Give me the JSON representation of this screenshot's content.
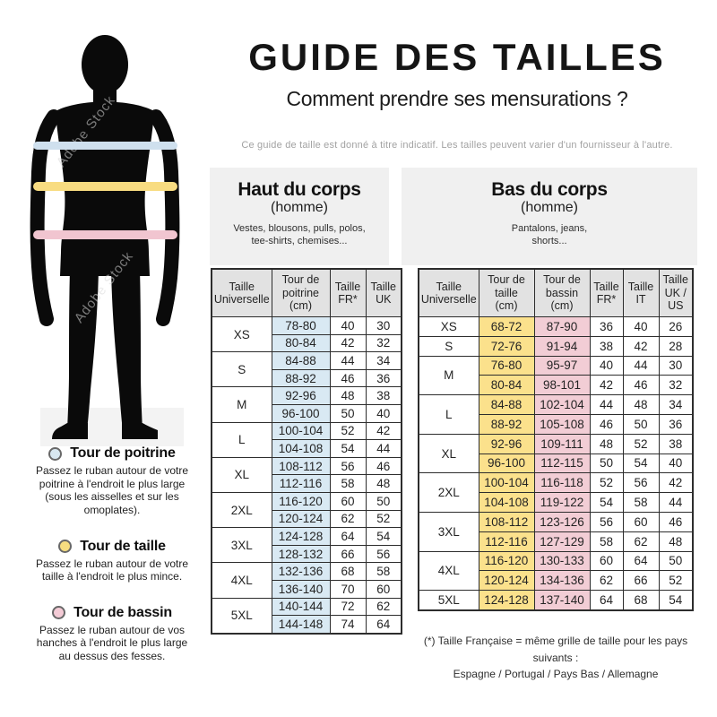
{
  "header": {
    "title": "GUIDE DES TAILLES",
    "subtitle": "Comment prendre ses mensurations ?",
    "note": "Ce guide de taille est donné à titre indicatif. Les tailles peuvent varier d'un fournisseur à l'autre."
  },
  "watermark": "Adobe Stock",
  "figure": {
    "bands": [
      {
        "name": "chest",
        "color": "#cfe0ee"
      },
      {
        "name": "waist",
        "color": "#f8dc81"
      },
      {
        "name": "hips",
        "color": "#f1c5d0"
      }
    ]
  },
  "legend": {
    "items": [
      {
        "label": "Tour de poitrine",
        "color": "#d8e7f0",
        "description": "Passez le ruban autour de votre\npoitrine à l'endroit le plus large\n(sous les aisselles et sur les\nomoplates)."
      },
      {
        "label": "Tour de taille",
        "color": "#f6dd80",
        "description": "Passez le ruban autour de votre\ntaille à l'endroit le plus mince."
      },
      {
        "label": "Tour de bassin",
        "color": "#f4cbd6",
        "description": "Passez le ruban autour de vos\nhanches à l'endroit le plus large\nau dessus des fesses."
      }
    ]
  },
  "upper_table": {
    "title": "Haut du corps",
    "subtitle": "(homme)",
    "items": "Vestes, blousons, pulls, polos,\ntee-shirts, chemises...",
    "columns": [
      "Taille\nUniverselle",
      "Tour de\npoitrine\n(cm)",
      "Taille\nFR*",
      "Taille\nUK"
    ],
    "highlight": {
      "0": "#d9e9f3"
    },
    "groups": [
      {
        "size": "XS",
        "rows": [
          [
            "78-80",
            "40",
            "30"
          ],
          [
            "80-84",
            "42",
            "32"
          ]
        ]
      },
      {
        "size": "S",
        "rows": [
          [
            "84-88",
            "44",
            "34"
          ],
          [
            "88-92",
            "46",
            "36"
          ]
        ]
      },
      {
        "size": "M",
        "rows": [
          [
            "92-96",
            "48",
            "38"
          ],
          [
            "96-100",
            "50",
            "40"
          ]
        ]
      },
      {
        "size": "L",
        "rows": [
          [
            "100-104",
            "52",
            "42"
          ],
          [
            "104-108",
            "54",
            "44"
          ]
        ]
      },
      {
        "size": "XL",
        "rows": [
          [
            "108-112",
            "56",
            "46"
          ],
          [
            "112-116",
            "58",
            "48"
          ]
        ]
      },
      {
        "size": "2XL",
        "rows": [
          [
            "116-120",
            "60",
            "50"
          ],
          [
            "120-124",
            "62",
            "52"
          ]
        ]
      },
      {
        "size": "3XL",
        "rows": [
          [
            "124-128",
            "64",
            "54"
          ],
          [
            "128-132",
            "66",
            "56"
          ]
        ]
      },
      {
        "size": "4XL",
        "rows": [
          [
            "132-136",
            "68",
            "58"
          ],
          [
            "136-140",
            "70",
            "60"
          ]
        ]
      },
      {
        "size": "5XL",
        "rows": [
          [
            "140-144",
            "72",
            "62"
          ],
          [
            "144-148",
            "74",
            "64"
          ]
        ]
      }
    ]
  },
  "lower_table": {
    "title": "Bas du corps",
    "subtitle": "(homme)",
    "items": "Pantalons, jeans,\nshorts...",
    "columns": [
      "Taille\nUniverselle",
      "Tour de\ntaille\n(cm)",
      "Tour de\nbassin\n(cm)",
      "Taille\nFR*",
      "Taille\nIT",
      "Taille\nUK /\nUS"
    ],
    "highlight": {
      "0": "#fbe18c",
      "1": "#f2cdd5"
    },
    "groups": [
      {
        "size": "XS",
        "rows": [
          [
            "68-72",
            "87-90",
            "36",
            "40",
            "26"
          ]
        ]
      },
      {
        "size": "S",
        "rows": [
          [
            "72-76",
            "91-94",
            "38",
            "42",
            "28"
          ]
        ]
      },
      {
        "size": "M",
        "rows": [
          [
            "76-80",
            "95-97",
            "40",
            "44",
            "30"
          ],
          [
            "80-84",
            "98-101",
            "42",
            "46",
            "32"
          ]
        ]
      },
      {
        "size": "L",
        "rows": [
          [
            "84-88",
            "102-104",
            "44",
            "48",
            "34"
          ],
          [
            "88-92",
            "105-108",
            "46",
            "50",
            "36"
          ]
        ]
      },
      {
        "size": "XL",
        "rows": [
          [
            "92-96",
            "109-111",
            "48",
            "52",
            "38"
          ],
          [
            "96-100",
            "112-115",
            "50",
            "54",
            "40"
          ]
        ]
      },
      {
        "size": "2XL",
        "rows": [
          [
            "100-104",
            "116-118",
            "52",
            "56",
            "42"
          ],
          [
            "104-108",
            "119-122",
            "54",
            "58",
            "44"
          ]
        ]
      },
      {
        "size": "3XL",
        "rows": [
          [
            "108-112",
            "123-126",
            "56",
            "60",
            "46"
          ],
          [
            "112-116",
            "127-129",
            "58",
            "62",
            "48"
          ]
        ]
      },
      {
        "size": "4XL",
        "rows": [
          [
            "116-120",
            "130-133",
            "60",
            "64",
            "50"
          ],
          [
            "120-124",
            "134-136",
            "62",
            "66",
            "52"
          ]
        ]
      },
      {
        "size": "5XL",
        "rows": [
          [
            "124-128",
            "137-140",
            "64",
            "68",
            "54"
          ]
        ]
      }
    ]
  },
  "footnote": "(*) Taille Française = même grille de taille pour les pays suivants :\nEspagne / Portugal / Pays Bas / Allemagne"
}
